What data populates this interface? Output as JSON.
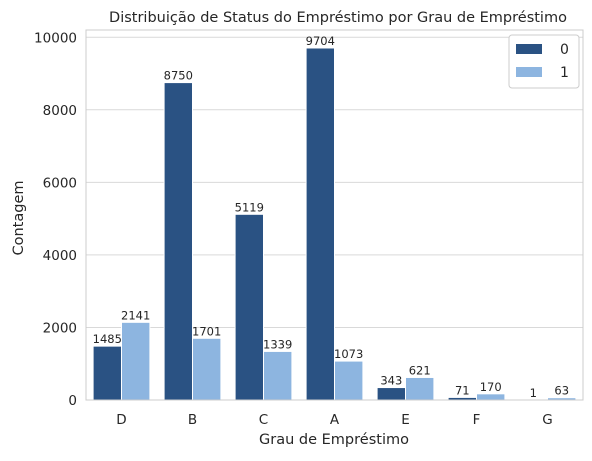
{
  "chart_data": {
    "type": "bar",
    "title": "Distribuição de Status do Empréstimo por Grau de Empréstimo",
    "xlabel": "Grau de Empréstimo",
    "ylabel": "Contagem",
    "categories": [
      "D",
      "B",
      "C",
      "A",
      "E",
      "F",
      "G"
    ],
    "series": [
      {
        "name": "0",
        "color": "#2a5283",
        "values": [
          1485,
          8750,
          5119,
          9704,
          343,
          71,
          1
        ]
      },
      {
        "name": "1",
        "color": "#8db5e0",
        "values": [
          2141,
          1701,
          1339,
          1073,
          621,
          170,
          63
        ]
      }
    ],
    "ylim": [
      0,
      10200
    ],
    "yticks": [
      0,
      2000,
      4000,
      6000,
      8000,
      10000
    ],
    "ytick_labels": [
      "0",
      "2000",
      "4000",
      "6000",
      "8000",
      "10000"
    ],
    "grid": "horizontal",
    "legend": "top-right",
    "data_labels": true
  }
}
